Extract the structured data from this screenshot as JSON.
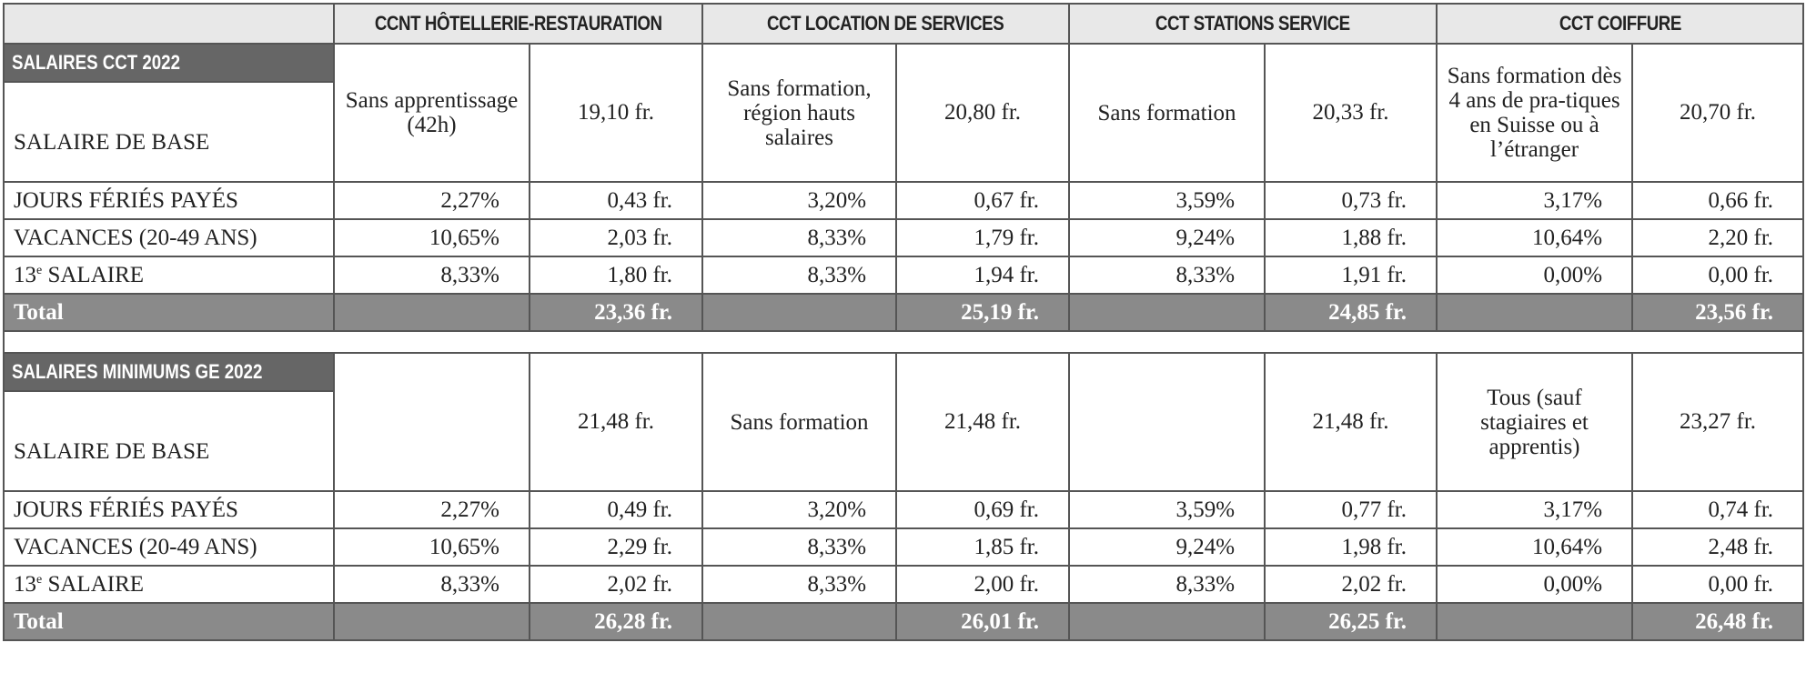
{
  "columns": [
    "CCNT HÔTELLERIE-RESTAURATION",
    "CCT LOCATION DE SERVICES",
    "CCT STATIONS SERVICE",
    "CCT COIFFURE"
  ],
  "sections": [
    {
      "title": "SALAIRES CCT 2022",
      "base_label": "SALAIRE DE BASE",
      "base": [
        {
          "desc": "Sans apprentissage (42h)",
          "amount": "19,10 fr."
        },
        {
          "desc": "Sans formation, région hauts salaires",
          "amount": "20,80 fr."
        },
        {
          "desc": "Sans formation",
          "amount": "20,33 fr."
        },
        {
          "desc": "Sans formation dès 4 ans de pra-tiques en Suisse ou à l’étranger",
          "amount": "20,70 fr."
        }
      ],
      "rows": [
        {
          "label": "JOURS FÉRIÉS PAYÉS",
          "values": [
            "2,27%",
            "0,43 fr.",
            "3,20%",
            "0,67 fr.",
            "3,59%",
            "0,73 fr.",
            "3,17%",
            "0,66 fr."
          ]
        },
        {
          "label": "VACANCES (20-49 ANS)",
          "values": [
            "10,65%",
            "2,03 fr.",
            "8,33%",
            "1,79 fr.",
            "9,24%",
            "1,88 fr.",
            "10,64%",
            "2,20 fr."
          ]
        },
        {
          "label": "13",
          "label_sup": "e",
          "label_rest": " SALAIRE",
          "values": [
            "8,33%",
            "1,80 fr.",
            "8,33%",
            "1,94 fr.",
            "8,33%",
            "1,91 fr.",
            "0,00%",
            "0,00 fr."
          ]
        }
      ],
      "total_label": "Total",
      "totals": [
        "23,36 fr.",
        "25,19 fr.",
        "24,85 fr.",
        "23,56 fr."
      ]
    },
    {
      "title": "SALAIRES MINIMUMS GE 2022",
      "base_label": "SALAIRE DE BASE",
      "base": [
        {
          "desc": "",
          "amount": "21,48 fr."
        },
        {
          "desc": "Sans formation",
          "amount": "21,48 fr."
        },
        {
          "desc": "",
          "amount": "21,48 fr."
        },
        {
          "desc": "Tous (sauf stagiaires et apprentis)",
          "amount": "23,27 fr."
        }
      ],
      "rows": [
        {
          "label": "JOURS FÉRIÉS PAYÉS",
          "values": [
            "2,27%",
            "0,49 fr.",
            "3,20%",
            "0,69 fr.",
            "3,59%",
            "0,77 fr.",
            "3,17%",
            "0,74 fr."
          ]
        },
        {
          "label": "VACANCES (20-49 ANS)",
          "values": [
            "10,65%",
            "2,29 fr.",
            "8,33%",
            "1,85 fr.",
            "9,24%",
            "1,98 fr.",
            "10,64%",
            "2,48 fr."
          ]
        },
        {
          "label": "13",
          "label_sup": "e",
          "label_rest": " SALAIRE",
          "values": [
            "8,33%",
            "2,02 fr.",
            "8,33%",
            "2,00 fr.",
            "8,33%",
            "2,02 fr.",
            "0,00%",
            "0,00 fr."
          ]
        }
      ],
      "total_label": "Total",
      "totals": [
        "26,28 fr.",
        "26,01 fr.",
        "26,25 fr.",
        "26,48 fr."
      ]
    }
  ]
}
